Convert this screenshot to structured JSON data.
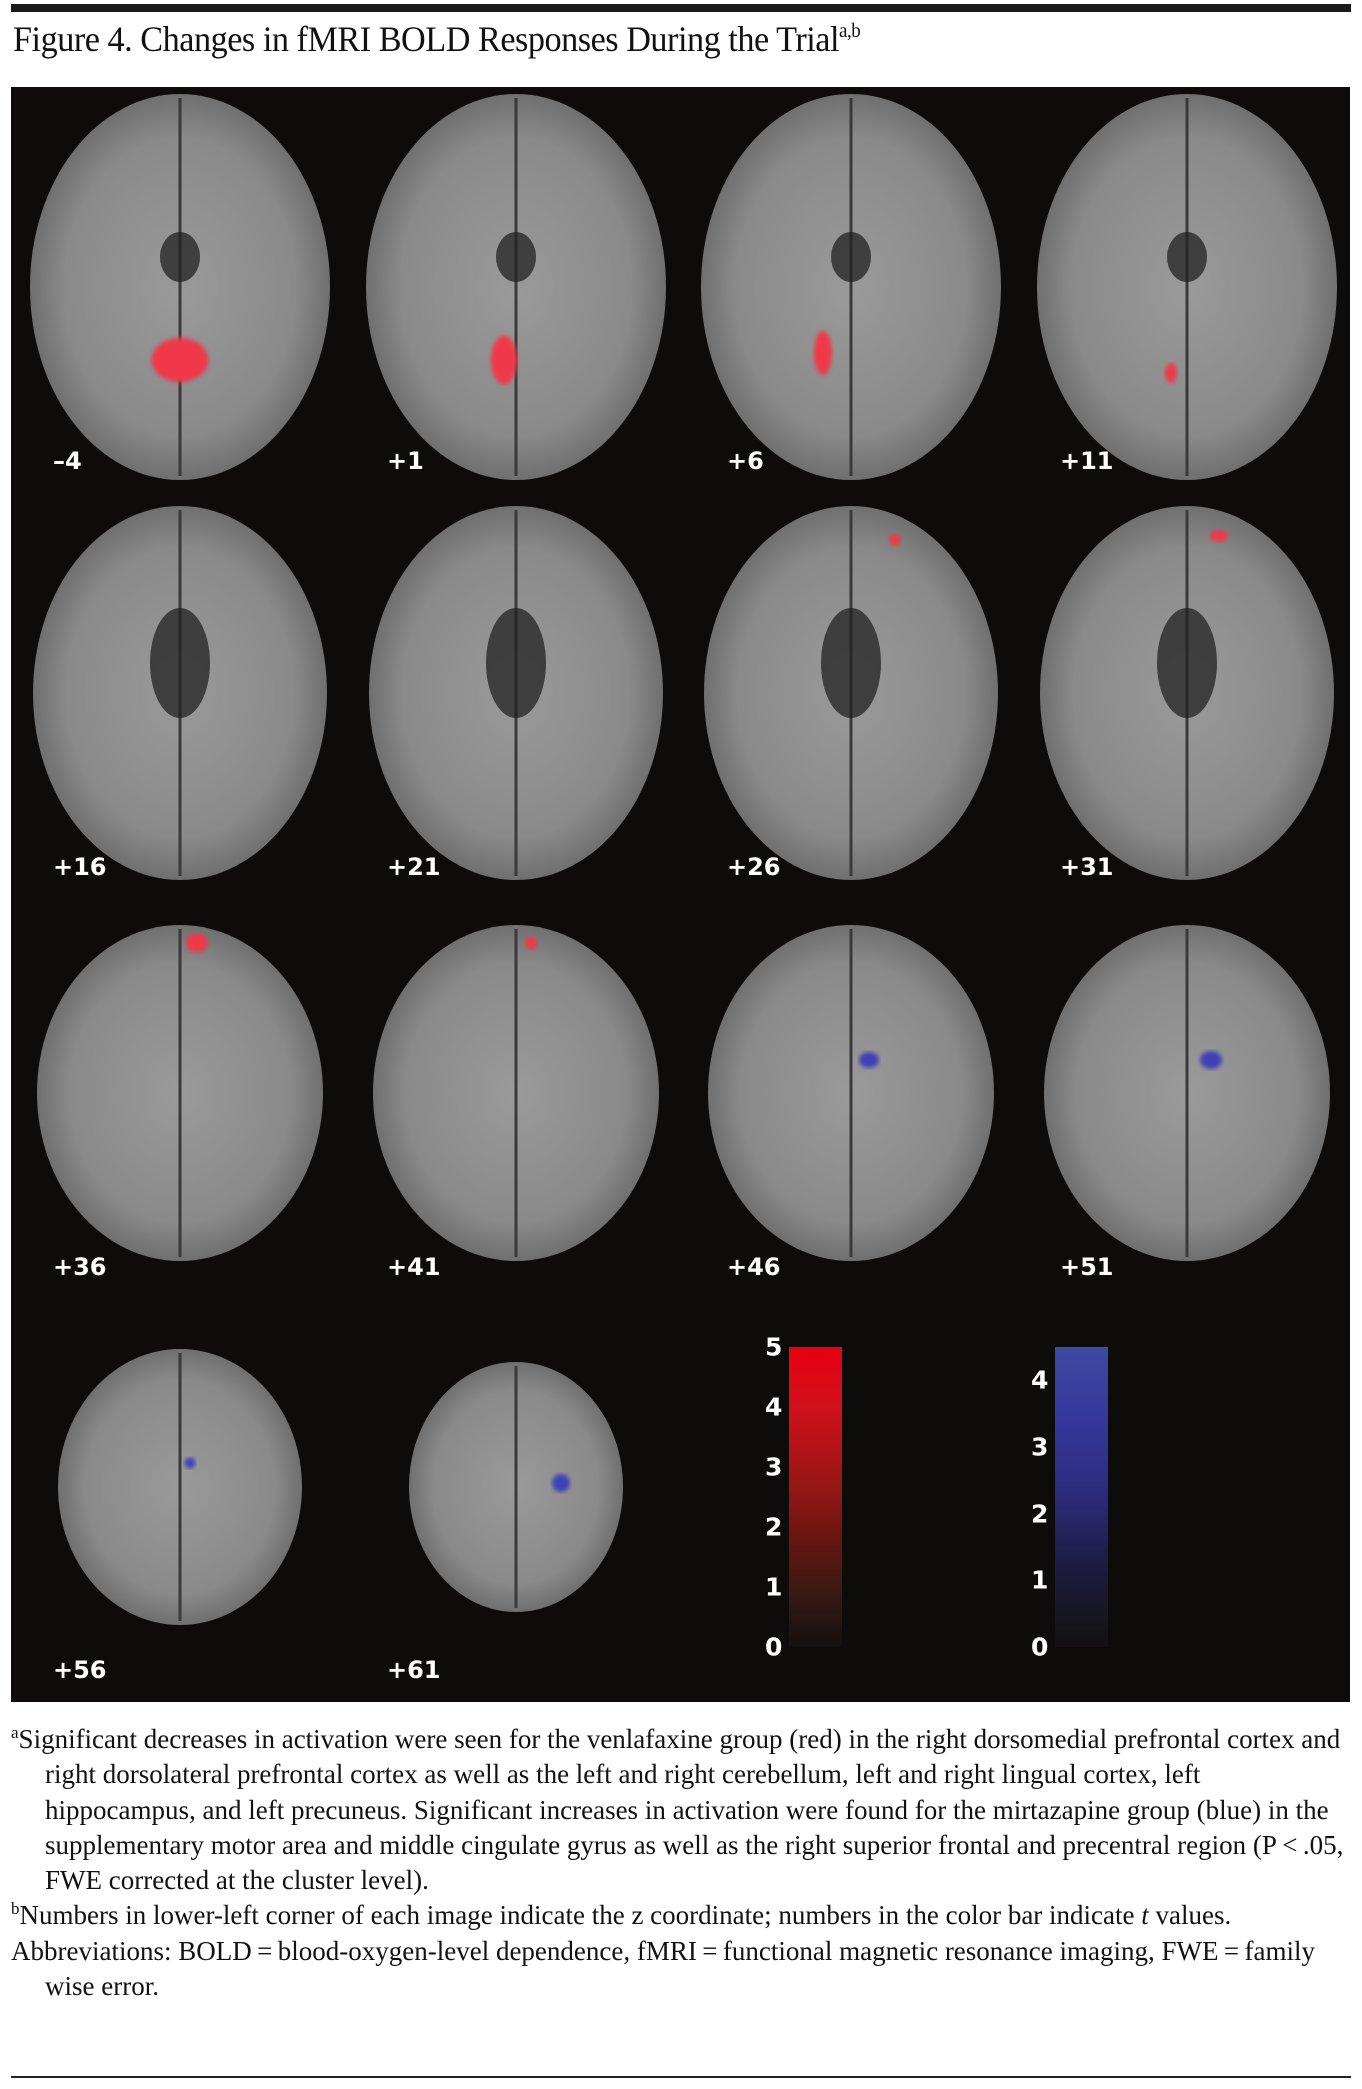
{
  "figure": {
    "title": "Figure 4. Changes in fMRI BOLD Responses During the Trial",
    "title_superscript": "a,b"
  },
  "slices": [
    {
      "z": "–4",
      "activation": "red"
    },
    {
      "z": "+1",
      "activation": "red"
    },
    {
      "z": "+6",
      "activation": "red"
    },
    {
      "z": "+11",
      "activation": "red"
    },
    {
      "z": "+16",
      "activation": "none"
    },
    {
      "z": "+21",
      "activation": "none"
    },
    {
      "z": "+26",
      "activation": "red"
    },
    {
      "z": "+31",
      "activation": "red"
    },
    {
      "z": "+36",
      "activation": "red"
    },
    {
      "z": "+41",
      "activation": "red"
    },
    {
      "z": "+46",
      "activation": "blue"
    },
    {
      "z": "+51",
      "activation": "blue"
    },
    {
      "z": "+56",
      "activation": "blue"
    },
    {
      "z": "+61",
      "activation": "blue"
    }
  ],
  "colorbars": {
    "red": {
      "color": "#e60012",
      "min": 0,
      "max": 5,
      "ticks": [
        "5",
        "4",
        "3",
        "2",
        "1",
        "0"
      ]
    },
    "blue": {
      "color": "#3c4aa0",
      "min": 0,
      "max": 4.5,
      "ticks": [
        "4",
        "3",
        "2",
        "1",
        "0"
      ]
    }
  },
  "footnotes": {
    "a_marker": "a",
    "a_text": "Significant decreases in activation were seen for the venlafaxine group (red) in the right dorsomedial prefrontal cortex and right dorsolateral prefrontal cortex as well as the left and right cerebellum, left and right lingual cortex, left hippocampus, and left precuneus. Significant increases in activation were found for the mirtazapine group (blue) in the supplementary motor area and middle cingulate gyrus as well as the right superior frontal and precentral region (P < .05, FWE corrected at the cluster level).",
    "b_marker": "b",
    "b_text_1": "Numbers in lower-left corner of each image indicate the z coordinate; numbers in the color bar indicate ",
    "b_text_t": "t",
    "b_text_2": " values.",
    "abbreviations": "Abbreviations: BOLD = blood-oxygen-level dependence, fMRI = functional magnetic resonance imaging, FWE = family wise error."
  }
}
